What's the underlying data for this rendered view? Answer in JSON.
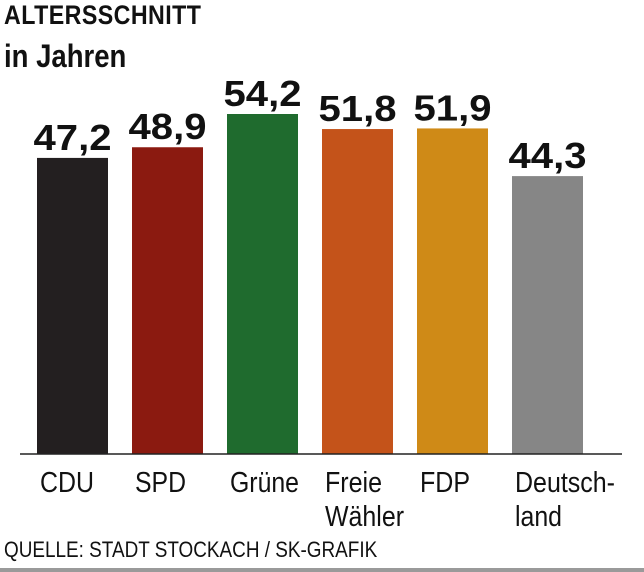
{
  "chart_data": {
    "type": "bar",
    "title": "ALTERSSCHNITT",
    "subtitle": "in Jahren",
    "categories": [
      [
        "CDU"
      ],
      [
        "SPD"
      ],
      [
        "Grüne"
      ],
      [
        "Freie",
        "Wähler"
      ],
      [
        "FDP"
      ],
      [
        "Deutsch-",
        "land"
      ]
    ],
    "values": [
      47.2,
      48.9,
      54.2,
      51.8,
      51.9,
      44.3
    ],
    "value_labels": [
      "47,2",
      "48,9",
      "54,2",
      "51,8",
      "51,9",
      "44,3"
    ],
    "colors": [
      "#231f20",
      "#8b1a10",
      "#1f6b2e",
      "#c4531a",
      "#cf8a17",
      "#868686"
    ],
    "ylim": [
      0,
      54.2
    ],
    "grid": false,
    "source": "QUELLE: STADT STOCKACH / SK-GRAFIK"
  }
}
